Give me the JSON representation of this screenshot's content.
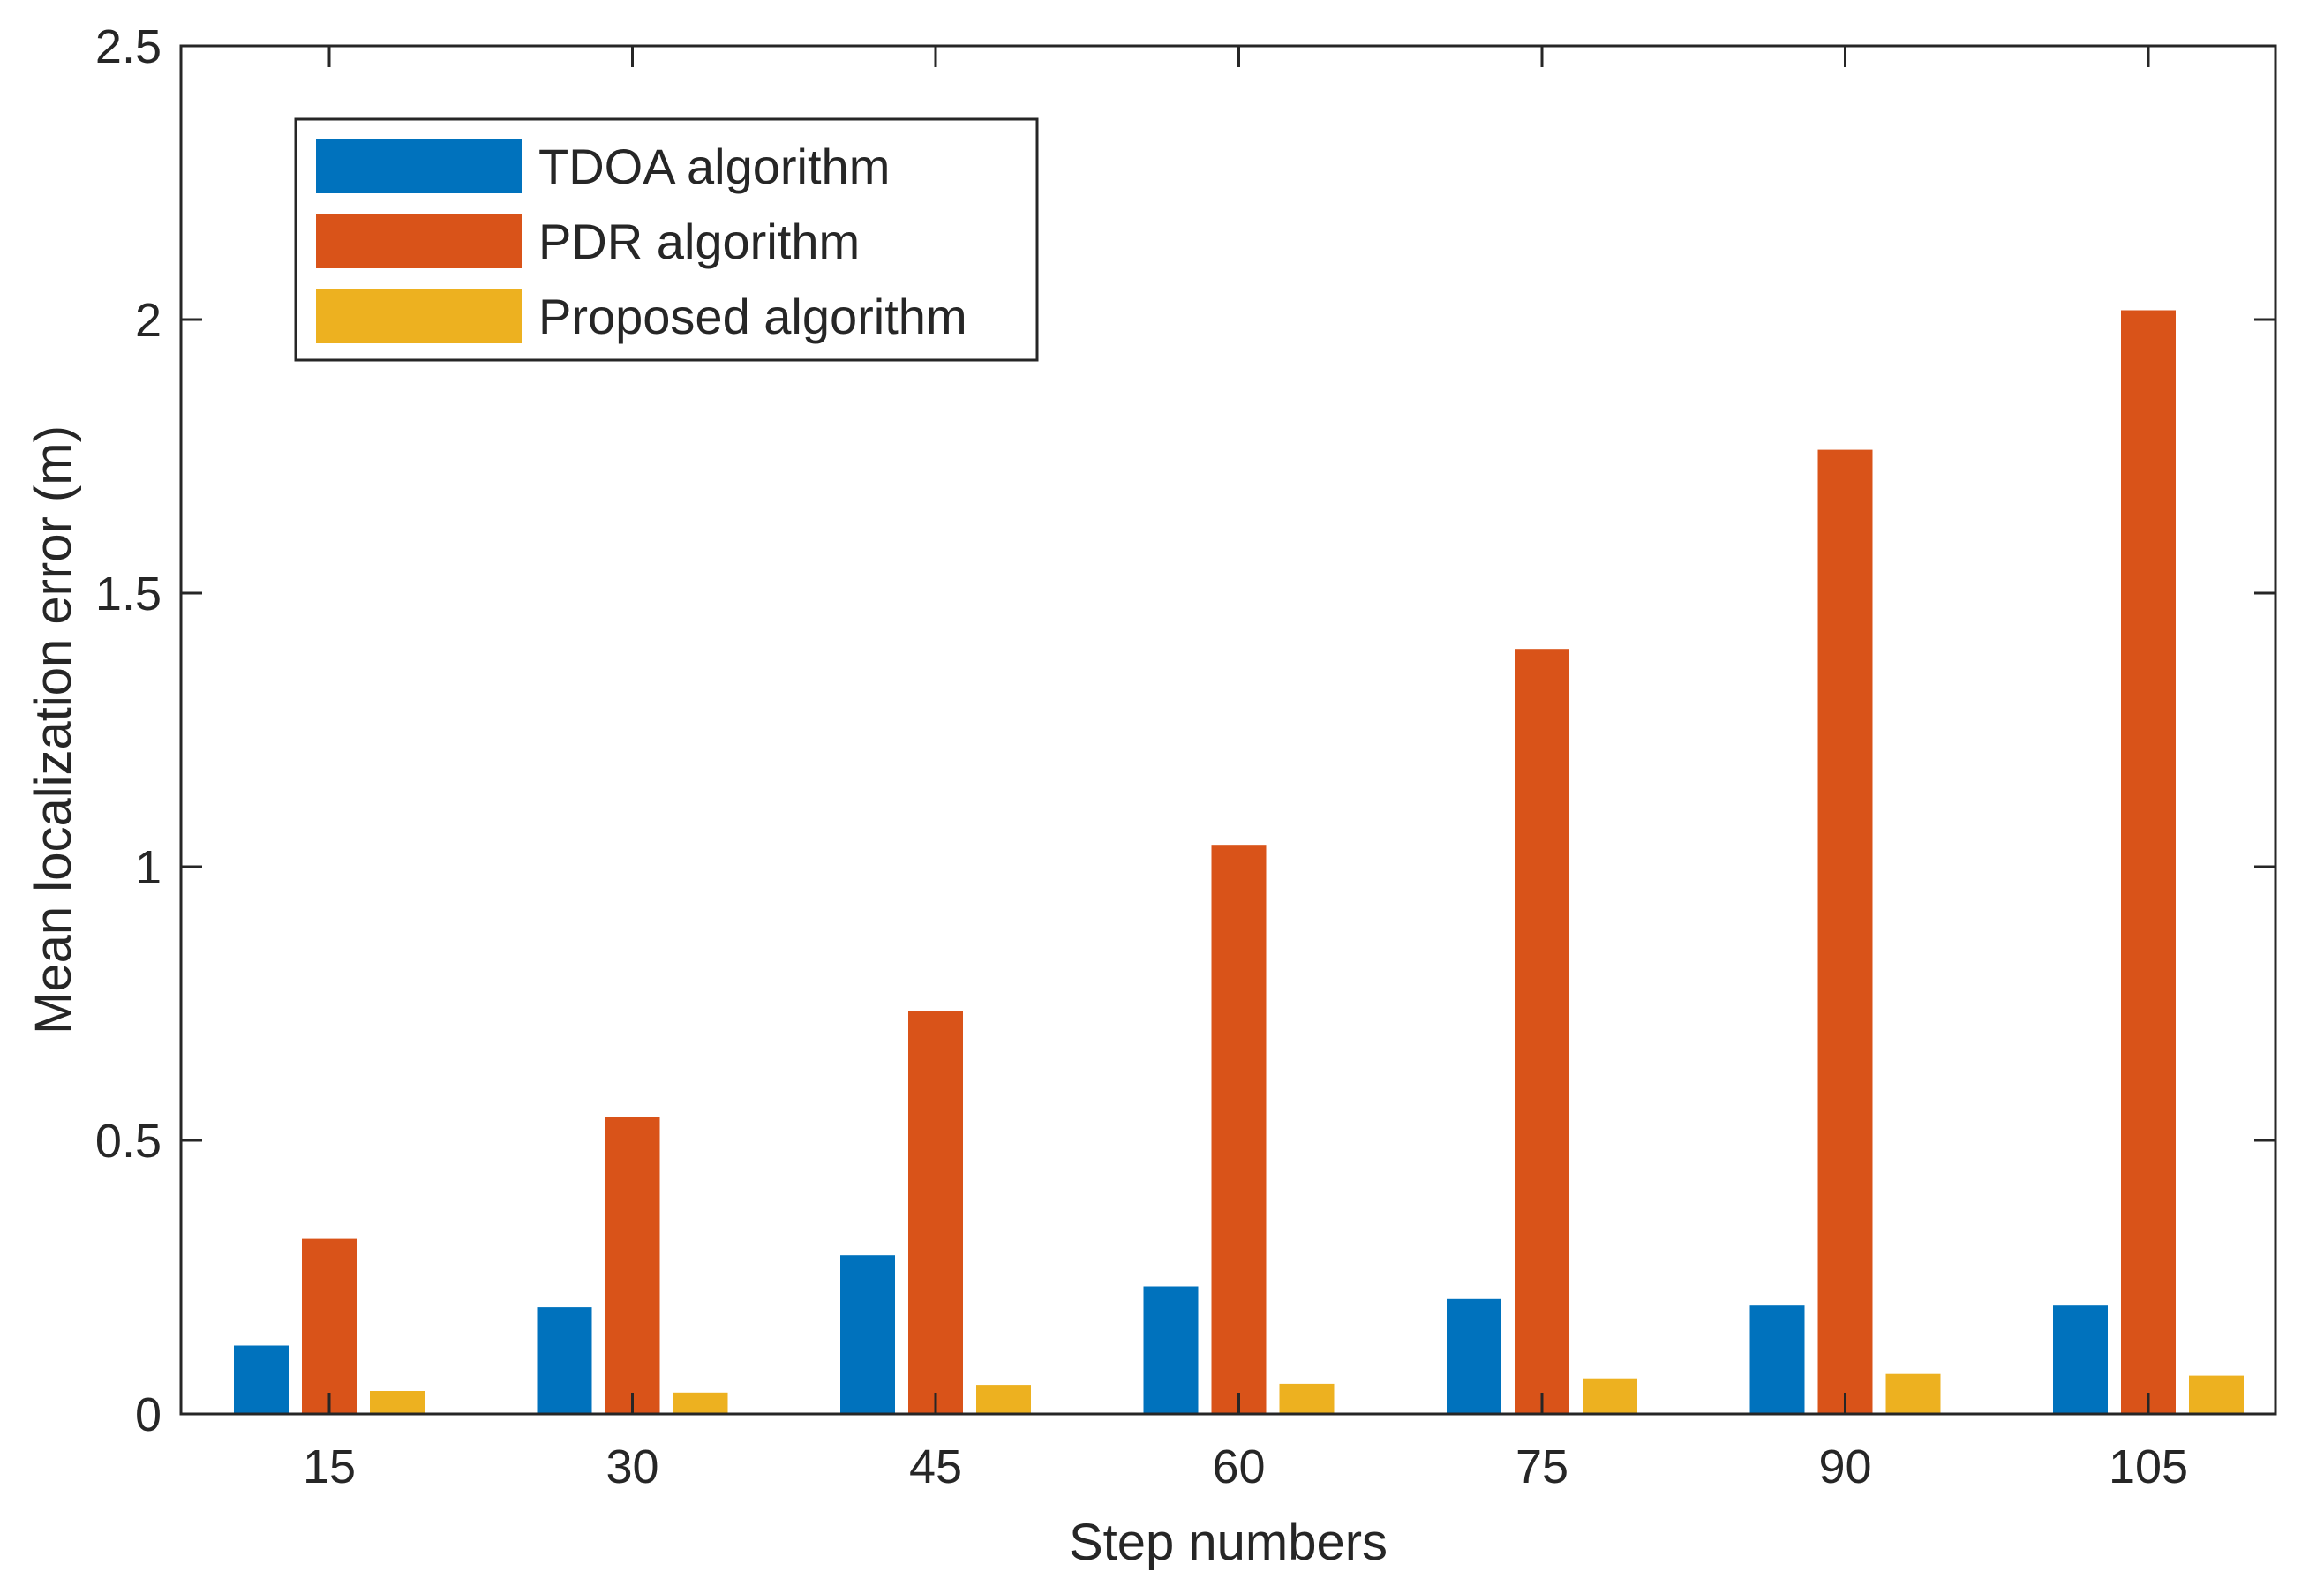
{
  "chart_data": {
    "type": "bar",
    "title": "",
    "xlabel": "Step numbers",
    "ylabel": "Mean localization error (m)",
    "categories": [
      "15",
      "30",
      "45",
      "60",
      "75",
      "90",
      "105"
    ],
    "ylim": [
      0,
      2.5
    ],
    "yticks": [
      0,
      0.5,
      1,
      1.5,
      2,
      2.5
    ],
    "ytick_labels": [
      "0",
      "0.5",
      "1",
      "1.5",
      "2",
      "2.5"
    ],
    "grid": false,
    "legend_position": "top-left",
    "series": [
      {
        "name": "TDOA algorithm",
        "color": "#0072BD",
        "values": [
          0.125,
          0.195,
          0.29,
          0.233,
          0.21,
          0.198,
          0.198
        ]
      },
      {
        "name": "PDR algorithm",
        "color": "#D95319",
        "values": [
          0.32,
          0.543,
          0.737,
          1.04,
          1.398,
          1.762,
          2.017
        ]
      },
      {
        "name": "Proposed algorithm",
        "color": "#EDB120",
        "values": [
          0.042,
          0.039,
          0.053,
          0.055,
          0.065,
          0.073,
          0.07
        ]
      }
    ]
  }
}
